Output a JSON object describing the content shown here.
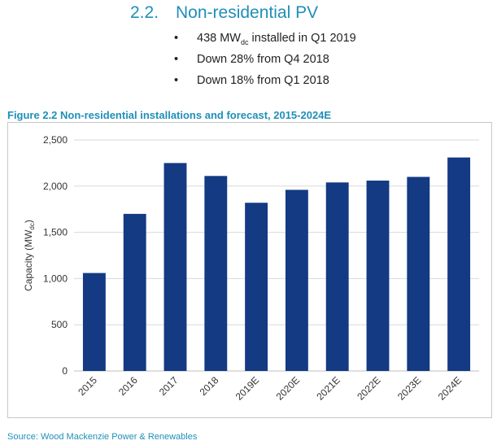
{
  "section": {
    "number": "2.2.",
    "title": "Non-residential PV",
    "bullets": [
      "438 MWdc installed in Q1 2019",
      "Down 28% from Q4 2018",
      "Down 18% from Q1 2018"
    ]
  },
  "figure_title": "Figure 2.2 Non-residential installations and forecast, 2015-2024E",
  "source": "Source: Wood Mackenzie Power & Renewables",
  "colors": {
    "bar": "#133a83",
    "accent": "#1f8fb8"
  },
  "chart_data": {
    "type": "bar",
    "title": "Figure 2.2 Non-residential installations and forecast, 2015-2024E",
    "xlabel": "",
    "ylabel": "Capacity (MWdc)",
    "categories": [
      "2015",
      "2016",
      "2017",
      "2018",
      "2019E",
      "2020E",
      "2021E",
      "2022E",
      "2023E",
      "2024E"
    ],
    "values": [
      1060,
      1700,
      2250,
      2110,
      1820,
      1960,
      2040,
      2060,
      2100,
      2310
    ],
    "ylim": [
      0,
      2500
    ],
    "yticks": [
      0,
      500,
      1000,
      1500,
      2000,
      2500
    ],
    "ytick_labels": [
      "0",
      "500",
      "1,000",
      "1,500",
      "2,000",
      "2,500"
    ],
    "grid": "horizontal",
    "legend": "none"
  }
}
